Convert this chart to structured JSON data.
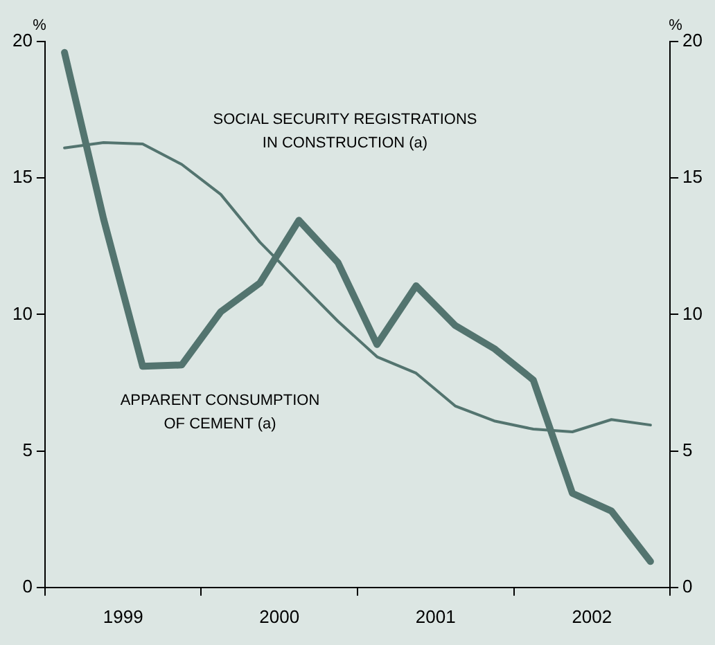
{
  "chart_data": {
    "type": "line",
    "ylabel": "%",
    "y2label": "%",
    "x": [
      1999.125,
      1999.375,
      1999.625,
      1999.875,
      2000.125,
      2000.375,
      2000.625,
      2000.875,
      2001.125,
      2001.375,
      2001.625,
      2001.875,
      2002.125,
      2002.375,
      2002.625,
      2002.875
    ],
    "series": [
      {
        "color": "#53746f",
        "values": [
          19.6,
          13.5,
          8.1,
          8.15,
          10.1,
          11.15,
          13.45,
          11.9,
          8.9,
          11.05,
          9.6,
          8.75,
          7.6,
          3.45,
          2.8,
          0.95
        ]
      },
      {
        "color": "#53746f",
        "values": [
          16.1,
          16.3,
          16.25,
          15.5,
          14.4,
          12.65,
          11.2,
          9.75,
          8.45,
          7.85,
          6.65,
          6.1,
          5.8,
          5.7,
          6.15,
          5.95
        ]
      }
    ],
    "xlim": [
      1999,
      2003
    ],
    "xticks": [
      {
        "value": 1999,
        "label": null
      },
      {
        "value": 1999.5,
        "label": "1999"
      },
      {
        "value": 2000,
        "label": null
      },
      {
        "value": 2000.5,
        "label": "2000"
      },
      {
        "value": 2001,
        "label": null
      },
      {
        "value": 2001.5,
        "label": "2001"
      },
      {
        "value": 2002,
        "label": null
      },
      {
        "value": 2002.5,
        "label": "2002"
      },
      {
        "value": 2003,
        "label": null
      }
    ],
    "ylim": [
      0,
      20
    ],
    "yticks": [
      0,
      5,
      10,
      15,
      20
    ],
    "y2lim": [
      0,
      20
    ],
    "y2ticks": [
      0,
      5,
      10,
      15,
      20
    ],
    "annotations": [
      "SOCIAL SECURITY REGISTRATIONS\nIN CONSTRUCTION (a)",
      "APPARENT CONSUMPTION\nOF CEMENT (a)"
    ],
    "grid": false,
    "legend": false,
    "marker": "none",
    "line_style": "solid"
  }
}
